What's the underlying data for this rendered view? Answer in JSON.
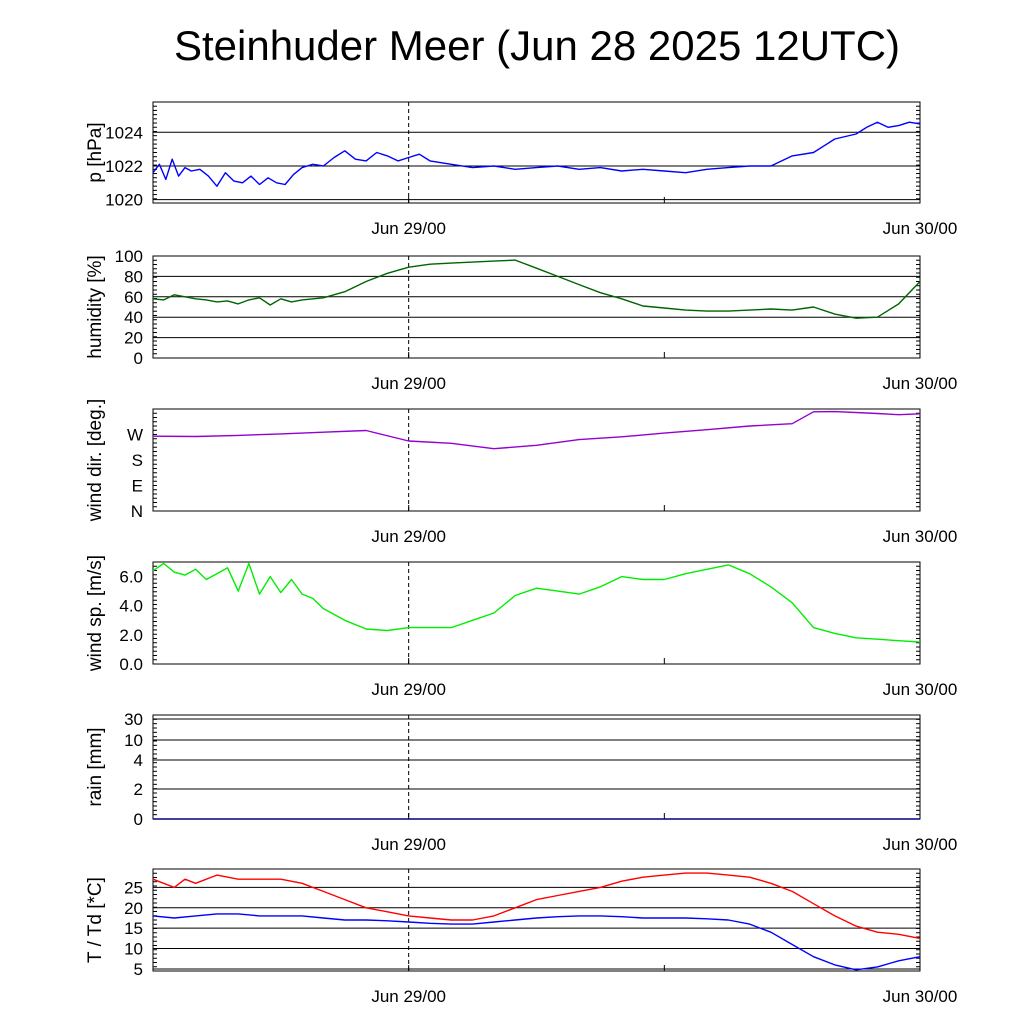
{
  "title": "Steinhuder Meer (Jun 28 2025 12UTC)",
  "chart_data": [
    {
      "type": "line",
      "ylabel": "p [hPa]",
      "ylim": [
        1019.8,
        1025.8
      ],
      "yticks": [
        1020,
        1022,
        1024
      ],
      "xticks": [
        "Jun 29/00",
        "Jun 30/00"
      ],
      "xlim": [
        0,
        36
      ],
      "grid": true,
      "series": [
        {
          "color": "#0000ff",
          "x": [
            0,
            0.3,
            0.6,
            0.9,
            1.2,
            1.5,
            1.8,
            2.2,
            2.6,
            3.0,
            3.4,
            3.8,
            4.2,
            4.6,
            5.0,
            5.4,
            5.8,
            6.2,
            6.6,
            7.0,
            7.5,
            8.0,
            8.5,
            9.0,
            9.5,
            10.0,
            10.5,
            11.0,
            11.5,
            12.0,
            12.5,
            13.0,
            14.0,
            15.0,
            16.0,
            17.0,
            18.0,
            19.0,
            20.0,
            21.0,
            22.0,
            23.0,
            24.0,
            25.0,
            26.0,
            27.0,
            28.0,
            29.0,
            30.0,
            31.0,
            31.5,
            32.0,
            33.0,
            33.5,
            34.0,
            34.5,
            35.0,
            35.5,
            36.0
          ],
          "y": [
            1021.6,
            1022.1,
            1021.2,
            1022.4,
            1021.4,
            1021.9,
            1021.7,
            1021.8,
            1021.4,
            1020.8,
            1021.6,
            1021.1,
            1021.0,
            1021.4,
            1020.9,
            1021.3,
            1021.0,
            1020.9,
            1021.5,
            1021.9,
            1022.1,
            1022.0,
            1022.5,
            1022.9,
            1022.4,
            1022.3,
            1022.8,
            1022.6,
            1022.3,
            1022.5,
            1022.7,
            1022.3,
            1022.1,
            1021.9,
            1022.0,
            1021.8,
            1021.9,
            1022.0,
            1021.8,
            1021.9,
            1021.7,
            1021.8,
            1021.7,
            1021.6,
            1021.8,
            1021.9,
            1022.0,
            1022.0,
            1022.6,
            1022.8,
            1023.2,
            1023.6,
            1023.9,
            1024.3,
            1024.6,
            1024.3,
            1024.4,
            1024.6,
            1024.5
          ]
        }
      ]
    },
    {
      "type": "line",
      "ylabel": "humidity [%]",
      "ylim": [
        0,
        100
      ],
      "yticks": [
        0,
        20,
        40,
        60,
        80,
        100
      ],
      "xticks": [
        "Jun 29/00",
        "Jun 30/00"
      ],
      "xlim": [
        0,
        36
      ],
      "grid": true,
      "series": [
        {
          "color": "#006400",
          "x": [
            0,
            0.5,
            1.0,
            1.5,
            2.0,
            2.5,
            3.0,
            3.5,
            4.0,
            4.5,
            5.0,
            5.5,
            6.0,
            6.5,
            7.0,
            8.0,
            9.0,
            10.0,
            11.0,
            12.0,
            13.0,
            14.0,
            15.0,
            16.0,
            17.0,
            18.0,
            19.0,
            20.0,
            21.0,
            22.0,
            23.0,
            24.0,
            25.0,
            26.0,
            27.0,
            28.0,
            29.0,
            30.0,
            31.0,
            32.0,
            33.0,
            34.0,
            35.0,
            36.0
          ],
          "y": [
            58,
            57,
            62,
            60,
            58,
            57,
            55,
            56,
            53,
            57,
            59,
            52,
            58,
            55,
            57,
            59,
            65,
            75,
            83,
            89,
            92,
            93,
            94,
            95,
            96,
            88,
            80,
            72,
            64,
            58,
            51,
            49,
            47,
            46,
            46,
            47,
            48,
            47,
            50,
            43,
            39,
            40,
            53,
            75
          ]
        }
      ]
    },
    {
      "type": "line",
      "ylabel": "wind dir. [deg.]",
      "ylim": [
        0,
        360
      ],
      "yticks": [
        0,
        90,
        180,
        270
      ],
      "yticklabels": [
        "N",
        "E",
        "S",
        "W"
      ],
      "xticks": [
        "Jun 29/00",
        "Jun 30/00"
      ],
      "xlim": [
        0,
        36
      ],
      "grid": false,
      "series": [
        {
          "color": "#9400d3",
          "x": [
            0,
            2,
            4,
            6,
            8,
            10,
            12,
            14,
            16,
            18,
            20,
            22,
            24,
            26,
            28,
            30,
            31,
            32,
            34,
            35,
            36
          ],
          "y": [
            264,
            263,
            267,
            272,
            278,
            284,
            247,
            239,
            220,
            232,
            252,
            262,
            275,
            287,
            300,
            308,
            350,
            351,
            344,
            340,
            343
          ]
        }
      ]
    },
    {
      "type": "line",
      "ylabel": "wind sp. [m/s]",
      "ylim": [
        0,
        7
      ],
      "yticks": [
        0.0,
        2.0,
        4.0,
        6.0
      ],
      "yticklabels": [
        "0.0",
        "2.0",
        "4.0",
        "6.0"
      ],
      "xticks": [
        "Jun 29/00",
        "Jun 30/00"
      ],
      "xlim": [
        0,
        36
      ],
      "grid": false,
      "series": [
        {
          "color": "#00ee00",
          "x": [
            0,
            0.5,
            1.0,
            1.5,
            2.0,
            2.5,
            3.0,
            3.5,
            4.0,
            4.5,
            5.0,
            5.5,
            6.0,
            6.5,
            7.0,
            7.5,
            8.0,
            9.0,
            10.0,
            11.0,
            12.0,
            13.0,
            14.0,
            15.0,
            16.0,
            17.0,
            18.0,
            19.0,
            20.0,
            21.0,
            22.0,
            23.0,
            24.0,
            25.0,
            26.0,
            27.0,
            28.0,
            29.0,
            30.0,
            31.0,
            32.0,
            33.0,
            34.0,
            35.0,
            36.0
          ],
          "y": [
            6.4,
            6.9,
            6.3,
            6.1,
            6.5,
            5.8,
            6.2,
            6.6,
            5.0,
            6.9,
            4.8,
            6.0,
            4.9,
            5.8,
            4.8,
            4.5,
            3.8,
            3.0,
            2.4,
            2.3,
            2.5,
            2.5,
            2.5,
            3.0,
            3.5,
            4.7,
            5.2,
            5.0,
            4.8,
            5.3,
            6.0,
            5.8,
            5.8,
            6.2,
            6.5,
            6.8,
            6.2,
            5.3,
            4.2,
            2.5,
            2.1,
            1.8,
            1.7,
            1.6,
            1.5
          ]
        }
      ]
    },
    {
      "type": "line",
      "ylabel": "rain [mm]",
      "yticks": [
        0,
        2,
        4,
        10,
        30
      ],
      "xticks": [
        "Jun 29/00",
        "Jun 30/00"
      ],
      "xlim": [
        0,
        36
      ],
      "grid": true,
      "series": [
        {
          "color": "#000080",
          "x": [
            0,
            36
          ],
          "y": [
            0,
            0
          ]
        }
      ]
    },
    {
      "type": "line",
      "ylabel": "T / Td [*C]",
      "ylim": [
        4.5,
        29.5
      ],
      "yticks": [
        5,
        10,
        15,
        20,
        25
      ],
      "xticks": [
        "Jun 29/00",
        "Jun 30/00"
      ],
      "xlim": [
        0,
        36
      ],
      "grid": true,
      "series": [
        {
          "color": "#ff0000",
          "x": [
            0,
            0.5,
            1.0,
            1.5,
            2.0,
            3.0,
            4.0,
            5.0,
            6.0,
            7.0,
            8.0,
            9.0,
            10.0,
            11.0,
            12.0,
            13.0,
            14.0,
            15.0,
            16.0,
            17.0,
            18.0,
            19.0,
            20.0,
            21.0,
            22.0,
            23.0,
            24.0,
            25.0,
            26.0,
            27.0,
            28.0,
            29.0,
            30.0,
            31.0,
            32.0,
            33.0,
            34.0,
            35.0,
            36.0
          ],
          "y": [
            27,
            26,
            25,
            27,
            26,
            28,
            27,
            27,
            27,
            26,
            24,
            22,
            20,
            19,
            18,
            17.5,
            17,
            17,
            18,
            20,
            22,
            23,
            24,
            25,
            26.5,
            27.5,
            28,
            28.5,
            28.5,
            28,
            27.5,
            26,
            24,
            21,
            18,
            15.5,
            14,
            13.5,
            12.5
          ]
        },
        {
          "color": "#0000ff",
          "x": [
            0,
            1,
            2,
            3,
            4,
            5,
            6,
            7,
            8,
            9,
            10,
            11,
            12,
            13,
            14,
            15,
            16,
            17,
            18,
            19,
            20,
            21,
            22,
            23,
            24,
            25,
            26,
            27,
            28,
            29,
            30,
            31,
            32,
            33,
            34,
            35,
            36
          ],
          "y": [
            18,
            17.5,
            18,
            18.5,
            18.5,
            18,
            18,
            18,
            17.5,
            17,
            17,
            16.8,
            16.5,
            16.2,
            16,
            16,
            16.5,
            17,
            17.5,
            17.8,
            18,
            18,
            17.8,
            17.5,
            17.5,
            17.5,
            17.3,
            17,
            16,
            14,
            11,
            8,
            6,
            4.8,
            5.5,
            7,
            8
          ]
        }
      ]
    }
  ]
}
